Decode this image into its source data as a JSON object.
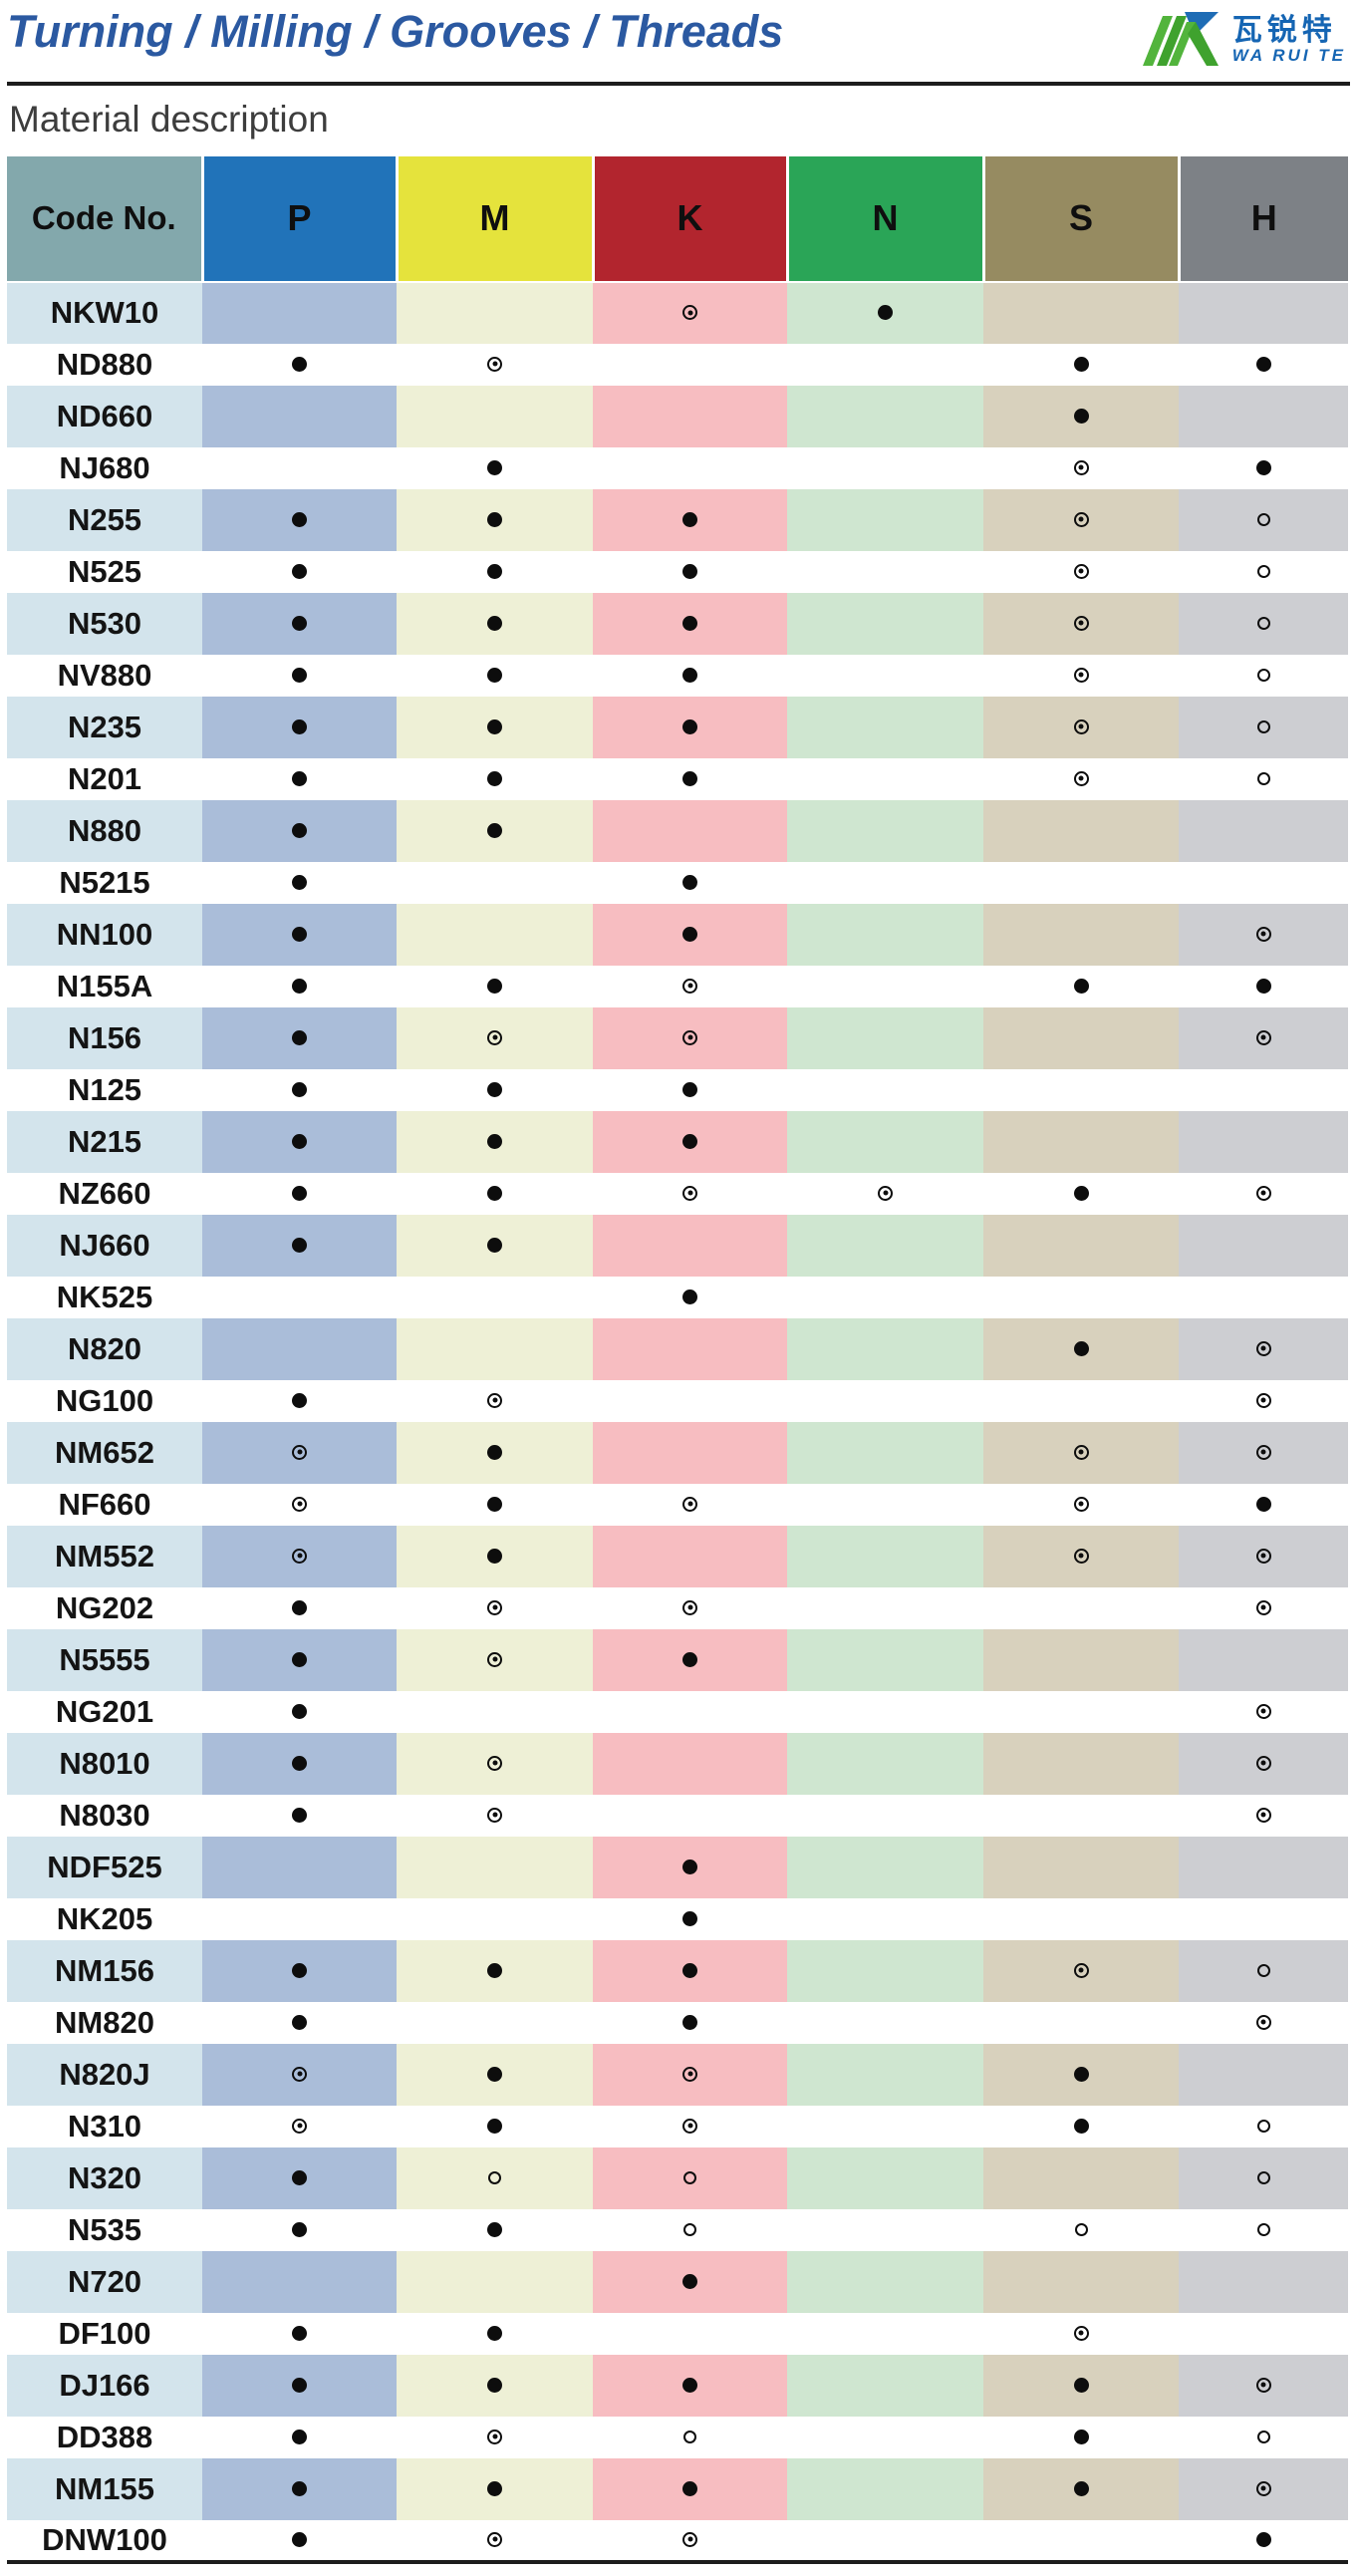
{
  "header": {
    "title": "Turning / Milling / Grooves / Threads",
    "section_title": "Material description",
    "logo": {
      "chinese": "瓦锐特",
      "latin": "WA RUI TE"
    }
  },
  "colors": {
    "title_blue": "#2b59a1",
    "rule_dark": "#1c1c1c",
    "logo_green": "#52b43c",
    "logo_green_dark": "#3fa22e",
    "logo_blue": "#1e6cb5"
  },
  "marks_legend": {
    "filled": "●",
    "bullseye": "◎",
    "open": "○"
  },
  "table": {
    "columns": [
      {
        "key": "code",
        "label": "Code No.",
        "header_bg": "#83a8ac",
        "tint": "#d3e4ec"
      },
      {
        "key": "P",
        "label": "P",
        "header_bg": "#2173b9",
        "tint": "#aabdd9"
      },
      {
        "key": "M",
        "label": "M",
        "header_bg": "#e5e33c",
        "tint": "#eef0d6"
      },
      {
        "key": "K",
        "label": "K",
        "header_bg": "#b2252e",
        "tint": "#f7bdc1"
      },
      {
        "key": "N",
        "label": "N",
        "header_bg": "#2aa557",
        "tint": "#cfe6d0"
      },
      {
        "key": "S",
        "label": "S",
        "header_bg": "#968b61",
        "tint": "#d8d1bd"
      },
      {
        "key": "H",
        "label": "H",
        "header_bg": "#7d8186",
        "tint": "#cdced2"
      }
    ],
    "mark_order": [
      "P",
      "M",
      "K",
      "N",
      "S",
      "H"
    ],
    "rows": [
      {
        "code": "NKW10",
        "marks": [
          "",
          "",
          "bullseye",
          "filled",
          "",
          ""
        ]
      },
      {
        "code": "ND880",
        "marks": [
          "filled",
          "bullseye",
          "",
          "",
          "filled",
          "filled"
        ]
      },
      {
        "code": "ND660",
        "marks": [
          "",
          "",
          "",
          "",
          "filled",
          ""
        ]
      },
      {
        "code": "NJ680",
        "marks": [
          "",
          "filled",
          "",
          "",
          "bullseye",
          "filled"
        ]
      },
      {
        "code": "N255",
        "marks": [
          "filled",
          "filled",
          "filled",
          "",
          "bullseye",
          "open"
        ]
      },
      {
        "code": "N525",
        "marks": [
          "filled",
          "filled",
          "filled",
          "",
          "bullseye",
          "open"
        ]
      },
      {
        "code": "N530",
        "marks": [
          "filled",
          "filled",
          "filled",
          "",
          "bullseye",
          "open"
        ]
      },
      {
        "code": "NV880",
        "marks": [
          "filled",
          "filled",
          "filled",
          "",
          "bullseye",
          "open"
        ]
      },
      {
        "code": "N235",
        "marks": [
          "filled",
          "filled",
          "filled",
          "",
          "bullseye",
          "open"
        ]
      },
      {
        "code": "N201",
        "marks": [
          "filled",
          "filled",
          "filled",
          "",
          "bullseye",
          "open"
        ]
      },
      {
        "code": "N880",
        "marks": [
          "filled",
          "filled",
          "",
          "",
          "",
          ""
        ]
      },
      {
        "code": "N5215",
        "marks": [
          "filled",
          "",
          "filled",
          "",
          "",
          ""
        ]
      },
      {
        "code": "NN100",
        "marks": [
          "filled",
          "",
          "filled",
          "",
          "",
          "bullseye"
        ]
      },
      {
        "code": "N155A",
        "marks": [
          "filled",
          "filled",
          "bullseye",
          "",
          "filled",
          "filled"
        ]
      },
      {
        "code": "N156",
        "marks": [
          "filled",
          "bullseye",
          "bullseye",
          "",
          "",
          "bullseye"
        ]
      },
      {
        "code": "N125",
        "marks": [
          "filled",
          "filled",
          "filled",
          "",
          "",
          ""
        ]
      },
      {
        "code": "N215",
        "marks": [
          "filled",
          "filled",
          "filled",
          "",
          "",
          ""
        ]
      },
      {
        "code": "NZ660",
        "marks": [
          "filled",
          "filled",
          "bullseye",
          "bullseye",
          "filled",
          "bullseye"
        ]
      },
      {
        "code": "NJ660",
        "marks": [
          "filled",
          "filled",
          "",
          "",
          "",
          ""
        ]
      },
      {
        "code": "NK525",
        "marks": [
          "",
          "",
          "filled",
          "",
          "",
          ""
        ]
      },
      {
        "code": "N820",
        "marks": [
          "",
          "",
          "",
          "",
          "filled",
          "bullseye"
        ]
      },
      {
        "code": "NG100",
        "marks": [
          "filled",
          "bullseye",
          "",
          "",
          "",
          "bullseye"
        ]
      },
      {
        "code": "NM652",
        "marks": [
          "bullseye",
          "filled",
          "",
          "",
          "bullseye",
          "bullseye"
        ]
      },
      {
        "code": "NF660",
        "marks": [
          "bullseye",
          "filled",
          "bullseye",
          "",
          "bullseye",
          "filled"
        ]
      },
      {
        "code": "NM552",
        "marks": [
          "bullseye",
          "filled",
          "",
          "",
          "bullseye",
          "bullseye"
        ]
      },
      {
        "code": "NG202",
        "marks": [
          "filled",
          "bullseye",
          "bullseye",
          "",
          "",
          "bullseye"
        ]
      },
      {
        "code": "N5555",
        "marks": [
          "filled",
          "bullseye",
          "filled",
          "",
          "",
          ""
        ]
      },
      {
        "code": "NG201",
        "marks": [
          "filled",
          "",
          "",
          "",
          "",
          "bullseye"
        ]
      },
      {
        "code": "N8010",
        "marks": [
          "filled",
          "bullseye",
          "",
          "",
          "",
          "bullseye"
        ]
      },
      {
        "code": "N8030",
        "marks": [
          "filled",
          "bullseye",
          "",
          "",
          "",
          "bullseye"
        ]
      },
      {
        "code": "NDF525",
        "marks": [
          "",
          "",
          "filled",
          "",
          "",
          ""
        ]
      },
      {
        "code": "NK205",
        "marks": [
          "",
          "",
          "filled",
          "",
          "",
          ""
        ]
      },
      {
        "code": "NM156",
        "marks": [
          "filled",
          "filled",
          "filled",
          "",
          "bullseye",
          "open"
        ]
      },
      {
        "code": "NM820",
        "marks": [
          "filled",
          "",
          "filled",
          "",
          "",
          "bullseye"
        ]
      },
      {
        "code": "N820J",
        "marks": [
          "bullseye",
          "filled",
          "bullseye",
          "",
          "filled",
          ""
        ]
      },
      {
        "code": "N310",
        "marks": [
          "bullseye",
          "filled",
          "bullseye",
          "",
          "filled",
          "open"
        ]
      },
      {
        "code": "N320",
        "marks": [
          "filled",
          "open",
          "open",
          "",
          "",
          "open"
        ]
      },
      {
        "code": "N535",
        "marks": [
          "filled",
          "filled",
          "open",
          "",
          "open",
          "open"
        ]
      },
      {
        "code": "N720",
        "marks": [
          "",
          "",
          "filled",
          "",
          "",
          ""
        ]
      },
      {
        "code": "DF100",
        "marks": [
          "filled",
          "filled",
          "",
          "",
          "bullseye",
          ""
        ]
      },
      {
        "code": "DJ166",
        "marks": [
          "filled",
          "filled",
          "filled",
          "",
          "filled",
          "bullseye"
        ]
      },
      {
        "code": "DD388",
        "marks": [
          "filled",
          "bullseye",
          "open",
          "",
          "filled",
          "open"
        ]
      },
      {
        "code": "NM155",
        "marks": [
          "filled",
          "filled",
          "filled",
          "",
          "filled",
          "bullseye"
        ]
      },
      {
        "code": "DNW100",
        "marks": [
          "filled",
          "bullseye",
          "bullseye",
          "",
          "",
          "filled"
        ]
      }
    ]
  }
}
